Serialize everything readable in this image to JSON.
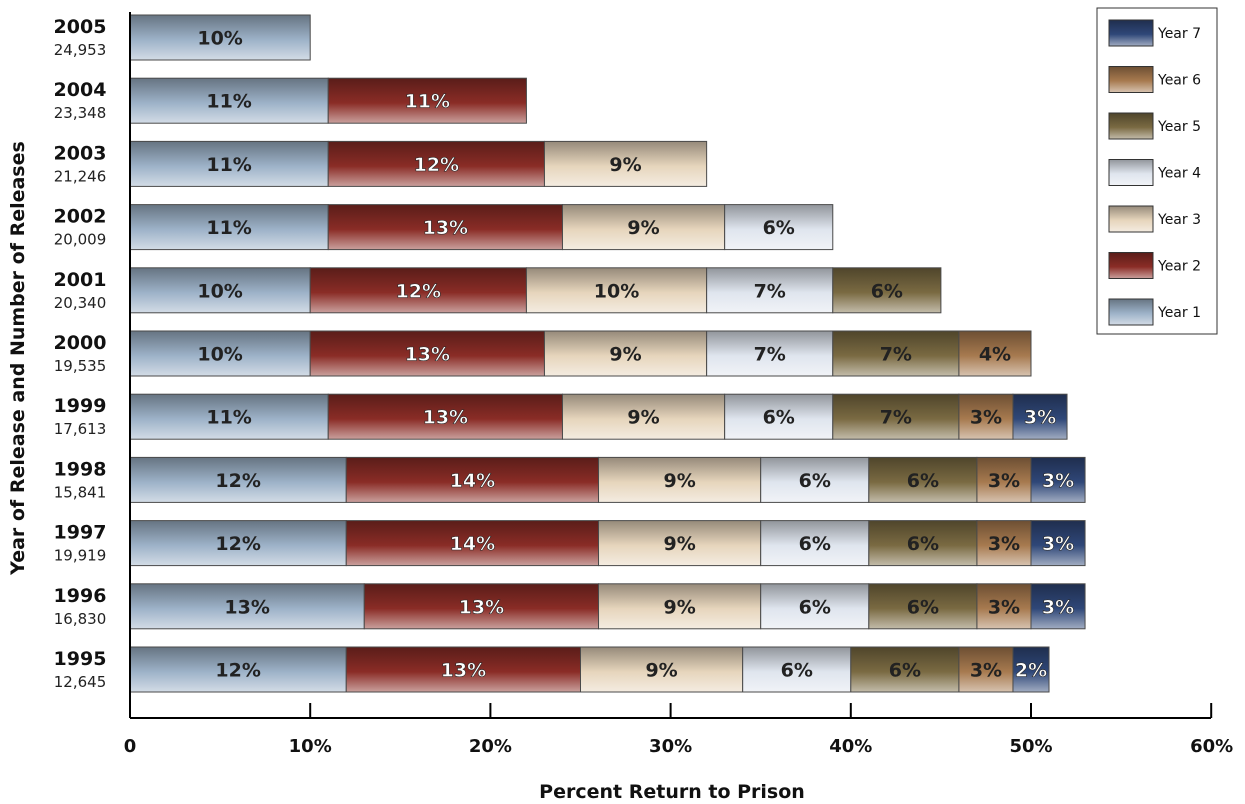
{
  "chart_data": {
    "type": "bar",
    "orientation": "horizontal",
    "stacked": true,
    "xlabel": "Percent Return to Prison",
    "ylabel": "Year of Release and Number of Releases",
    "xlim": [
      0,
      60
    ],
    "xticks": [
      "0",
      "10%",
      "20%",
      "30%",
      "40%",
      "50%",
      "60%"
    ],
    "legend_position": "top-right",
    "categories": [
      {
        "year": "2005",
        "releases": "24,953"
      },
      {
        "year": "2004",
        "releases": "23,348"
      },
      {
        "year": "2003",
        "releases": "21,246"
      },
      {
        "year": "2002",
        "releases": "20,009"
      },
      {
        "year": "2001",
        "releases": "20,340"
      },
      {
        "year": "2000",
        "releases": "19,535"
      },
      {
        "year": "1999",
        "releases": "17,613"
      },
      {
        "year": "1998",
        "releases": "15,841"
      },
      {
        "year": "1997",
        "releases": "19,919"
      },
      {
        "year": "1996",
        "releases": "16,830"
      },
      {
        "year": "1995",
        "releases": "12,645"
      }
    ],
    "series": [
      {
        "name": "Year 1",
        "color": "#9db2c8",
        "values": [
          10,
          11,
          11,
          11,
          10,
          10,
          11,
          12,
          12,
          13,
          12
        ]
      },
      {
        "name": "Year 2",
        "color": "#8a2c26",
        "values": [
          null,
          11,
          12,
          13,
          12,
          13,
          13,
          14,
          14,
          13,
          13
        ]
      },
      {
        "name": "Year 3",
        "color": "#e6d5bc",
        "values": [
          null,
          null,
          9,
          9,
          10,
          9,
          9,
          9,
          9,
          9,
          9
        ]
      },
      {
        "name": "Year 4",
        "color": "#dfe5ee",
        "values": [
          null,
          null,
          null,
          6,
          7,
          7,
          6,
          6,
          6,
          6,
          6
        ]
      },
      {
        "name": "Year 5",
        "color": "#7a6a42",
        "values": [
          null,
          null,
          null,
          null,
          6,
          7,
          7,
          6,
          6,
          6,
          6
        ]
      },
      {
        "name": "Year 6",
        "color": "#a77a4f",
        "values": [
          null,
          null,
          null,
          null,
          null,
          4,
          3,
          3,
          3,
          3,
          3
        ]
      },
      {
        "name": "Year 7",
        "color": "#2f4778",
        "values": [
          null,
          null,
          null,
          null,
          null,
          null,
          3,
          3,
          3,
          3,
          2
        ]
      }
    ],
    "legend_order": [
      "Year 7",
      "Year 6",
      "Year 5",
      "Year 4",
      "Year 3",
      "Year 2",
      "Year 1"
    ]
  }
}
